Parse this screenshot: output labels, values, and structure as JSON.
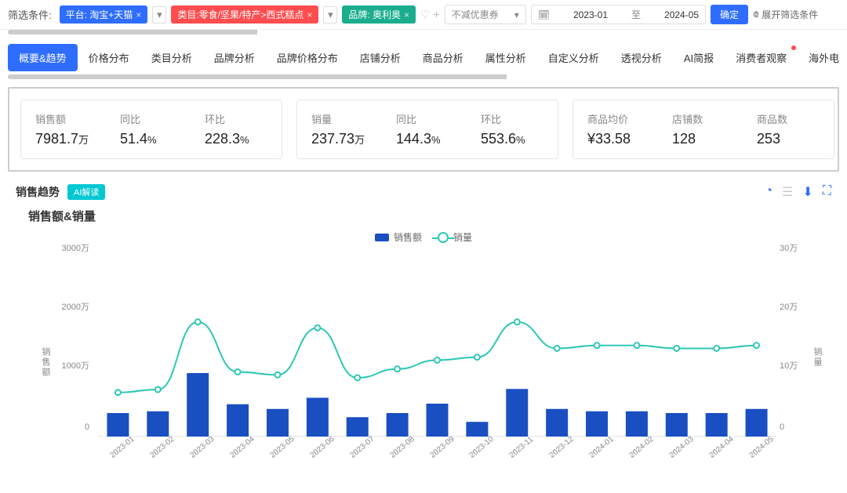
{
  "filter": {
    "label": "筛选条件:",
    "platform_tag": "平台: 淘宝+天猫",
    "category_tag": "类目:零食/坚果/特产>西式糕点",
    "brand_tag": "品牌: 奥利奥",
    "coupon_select": "不减优惠券",
    "date_from": "2023-01",
    "date_sep": "至",
    "date_to": "2024-05",
    "confirm": "确定",
    "expand": "展开筛选条件"
  },
  "tabs": [
    {
      "label": "概要&趋势",
      "active": true
    },
    {
      "label": "价格分布"
    },
    {
      "label": "类目分析"
    },
    {
      "label": "品牌分析"
    },
    {
      "label": "品牌价格分布"
    },
    {
      "label": "店铺分析"
    },
    {
      "label": "商品分析"
    },
    {
      "label": "属性分析"
    },
    {
      "label": "自定义分析"
    },
    {
      "label": "透视分析"
    },
    {
      "label": "AI简报"
    },
    {
      "label": "消费者观察",
      "dot": true
    },
    {
      "label": "海外电"
    }
  ],
  "stats": {
    "c1": [
      {
        "label": "销售额",
        "value": "7981.7",
        "unit": "万"
      },
      {
        "label": "同比",
        "value": "51.4",
        "unit": "%"
      },
      {
        "label": "环比",
        "value": "228.3",
        "unit": "%"
      }
    ],
    "c2": [
      {
        "label": "销量",
        "value": "237.73",
        "unit": "万"
      },
      {
        "label": "同比",
        "value": "144.3",
        "unit": "%"
      },
      {
        "label": "环比",
        "value": "553.6",
        "unit": "%"
      }
    ],
    "c3": [
      {
        "label": "商品均价",
        "value": "¥33.58",
        "unit": ""
      },
      {
        "label": "店铺数",
        "value": "128",
        "unit": ""
      },
      {
        "label": "商品数",
        "value": "253",
        "unit": ""
      }
    ]
  },
  "trend": {
    "title": "销售趋势",
    "ai_tag": "AI解读",
    "chart_title": "销售额&销量",
    "legend_bar": "销售额",
    "legend_line": "销量",
    "y_left_label": "销售额",
    "y_right_label": "销量",
    "chart": {
      "bar_color": "#1a4fc2",
      "line_color": "#2ec7b6",
      "axis_color": "#888888",
      "y_left_max": 3200,
      "y_left_ticks": [
        {
          "v": 0,
          "t": "0"
        },
        {
          "v": 1000,
          "t": "1000万"
        },
        {
          "v": 2000,
          "t": "2000万"
        },
        {
          "v": 3000,
          "t": "3000万"
        }
      ],
      "y_right_max": 32,
      "y_right_ticks": [
        {
          "v": 0,
          "t": "0"
        },
        {
          "v": 10,
          "t": "10万"
        },
        {
          "v": 20,
          "t": "20万"
        },
        {
          "v": 30,
          "t": "30万"
        }
      ],
      "x": [
        "2023-01",
        "2023-02",
        "2023-03",
        "2023-04",
        "2023-05",
        "2023-06",
        "2023-07",
        "2023-08",
        "2023-09",
        "2023-10",
        "2023-11",
        "2023-12",
        "2024-01",
        "2024-02",
        "2024-03",
        "2024-04",
        "2024-05"
      ],
      "bars": [
        400,
        430,
        1080,
        550,
        470,
        660,
        330,
        400,
        560,
        250,
        810,
        470,
        430,
        430,
        400,
        400,
        470
      ],
      "line": [
        7.5,
        8,
        19.5,
        11,
        10.5,
        18.5,
        10,
        11.5,
        13,
        13.5,
        19.5,
        15,
        15.5,
        15.5,
        15,
        15,
        15.5
      ]
    }
  }
}
